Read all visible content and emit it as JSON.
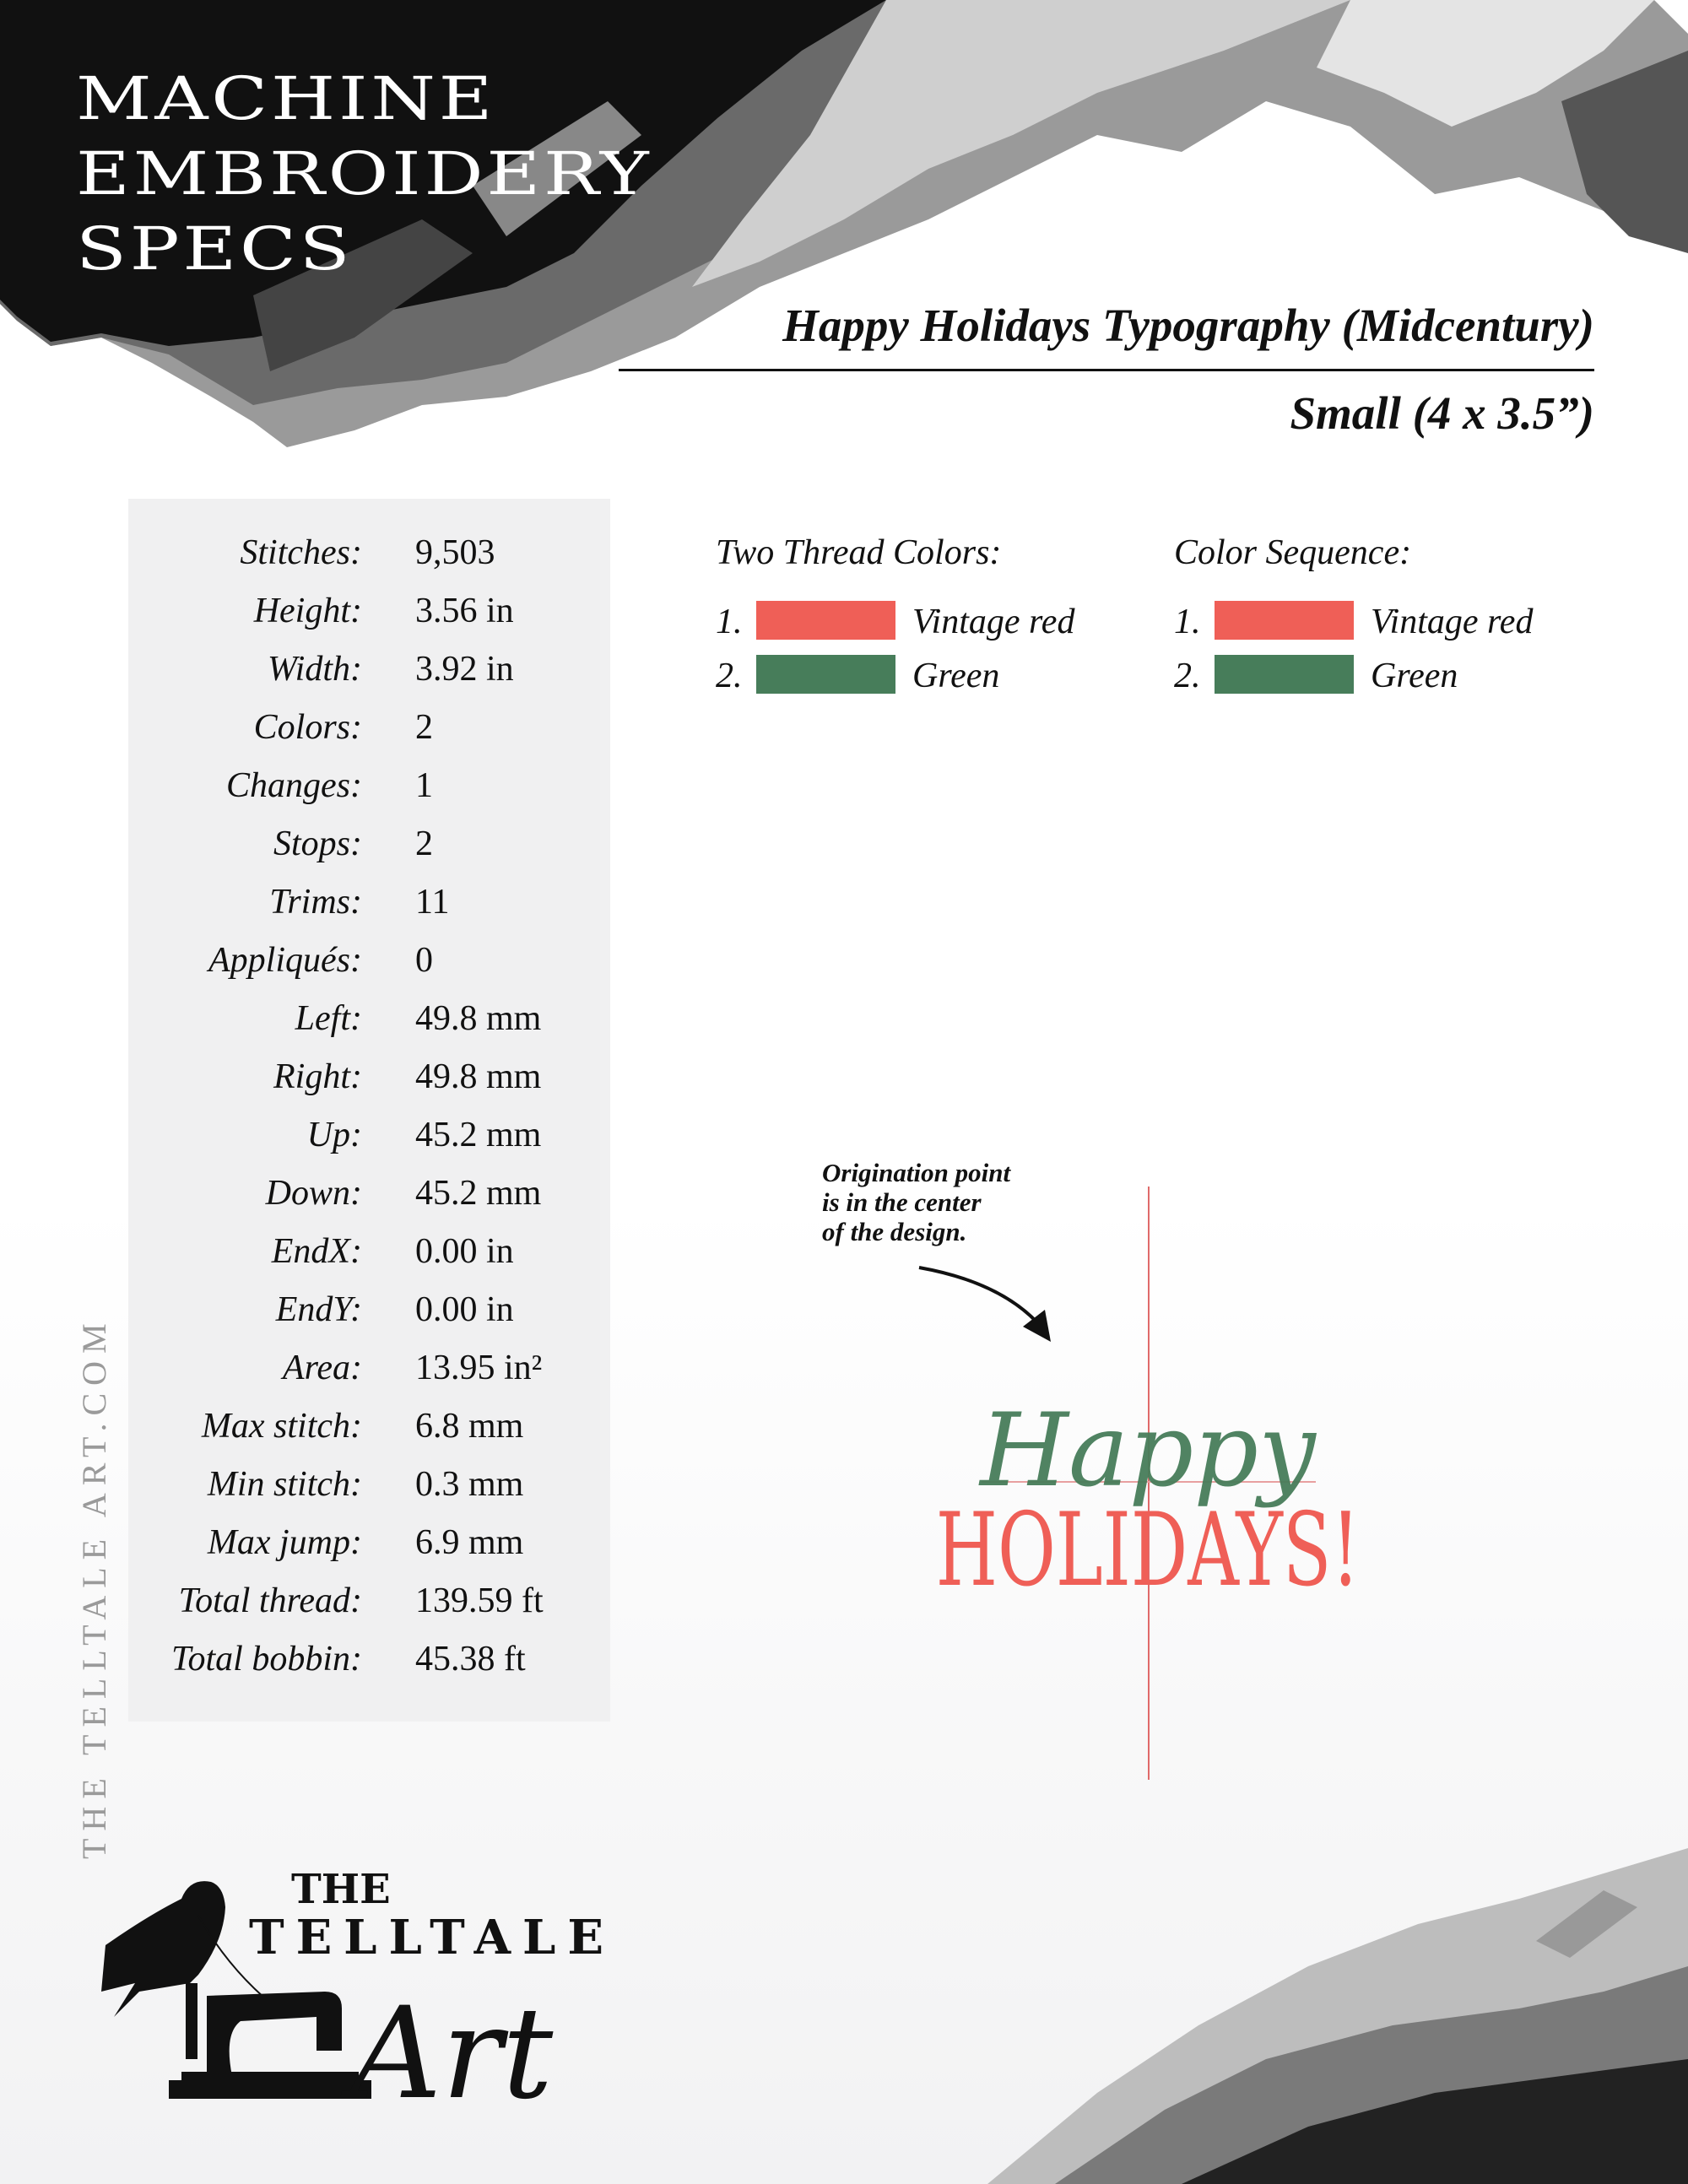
{
  "header": {
    "title_lines": [
      "MACHINE",
      "EMBROIDERY",
      "SPECS"
    ],
    "design_name": "Happy Holidays Typography (Midcentury)",
    "size": "Small (4 x 3.5”)"
  },
  "specs": [
    {
      "label": "Stitches:",
      "value": "9,503"
    },
    {
      "label": "Height:",
      "value": "3.56 in"
    },
    {
      "label": "Width:",
      "value": "3.92 in"
    },
    {
      "label": "Colors:",
      "value": "2"
    },
    {
      "label": "Changes:",
      "value": "1"
    },
    {
      "label": "Stops:",
      "value": "2"
    },
    {
      "label": "Trims:",
      "value": "11"
    },
    {
      "label": "Appliqués:",
      "value": "0"
    },
    {
      "label": "Left:",
      "value": "49.8 mm"
    },
    {
      "label": "Right:",
      "value": "49.8 mm"
    },
    {
      "label": "Up:",
      "value": "45.2 mm"
    },
    {
      "label": "Down:",
      "value": "45.2 mm"
    },
    {
      "label": "EndX:",
      "value": "0.00 in"
    },
    {
      "label": "EndY:",
      "value": "0.00 in"
    },
    {
      "label": "Area:",
      "value": "13.95 in²"
    },
    {
      "label": "Max stitch:",
      "value": "6.8 mm"
    },
    {
      "label": "Min stitch:",
      "value": "0.3 mm"
    },
    {
      "label": "Max jump:",
      "value": "6.9 mm"
    },
    {
      "label": "Total thread:",
      "value": "139.59 ft"
    },
    {
      "label": "Total bobbin:",
      "value": "45.38 ft"
    }
  ],
  "thread_colors": {
    "heading": "Two Thread Colors:",
    "items": [
      {
        "num": "1.",
        "name": "Vintage red",
        "color": "#ef5f57"
      },
      {
        "num": "2.",
        "name": "Green",
        "color": "#477d5a"
      }
    ]
  },
  "color_sequence": {
    "heading": "Color Sequence:",
    "items": [
      {
        "num": "1.",
        "name": "Vintage red",
        "color": "#ef5f57"
      },
      {
        "num": "2.",
        "name": "Green",
        "color": "#477d5a"
      }
    ]
  },
  "preview": {
    "note_lines": [
      "Origination point",
      "is in the center",
      "of the design."
    ],
    "design_text_top": "Happy",
    "design_text_bottom": "HOLIDAYS!"
  },
  "side_text": "THE TELLTALE ART.COM",
  "logo": {
    "line1": "THE",
    "line2": "TELLTALE",
    "line3": "Art"
  }
}
